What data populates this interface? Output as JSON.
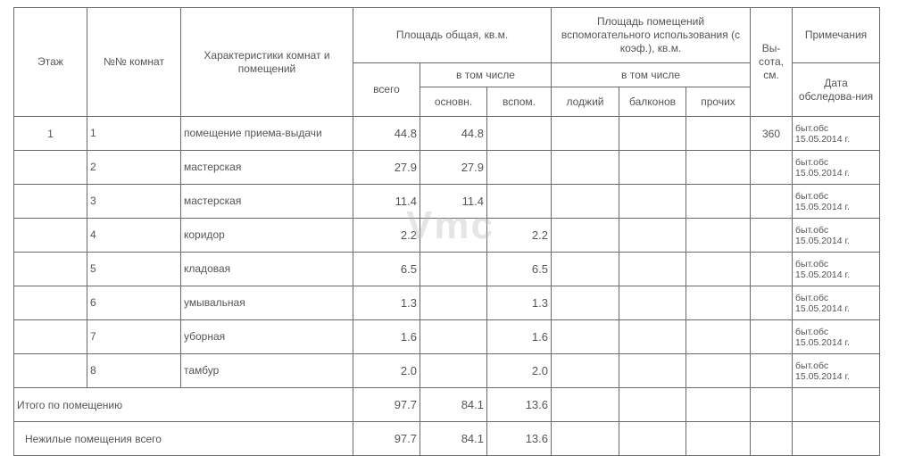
{
  "header": {
    "floor": "Этаж",
    "room_no": "№№ комнат",
    "characteristics": "Характеристики комнат и помещений",
    "total_area": "Площадь общая, кв.м.",
    "incl": "в том числе",
    "total": "всего",
    "main": "основн.",
    "aux": "вспом.",
    "aux_use_area": "Площадь помещений вспомогательного использования (с коэф.), кв.м.",
    "incl2": "в том числе",
    "loggias": "лоджий",
    "balconies": "балконов",
    "other": "прочих",
    "height": "Вы-сота, см.",
    "notes": "Примечания",
    "survey_date": "Дата обследова-ния"
  },
  "rows": [
    {
      "floor": "1",
      "room": "1",
      "name": "помещение приема-выдачи",
      "total": "44.8",
      "main": "44.8",
      "aux": "",
      "height": "360",
      "note": "быт.обс 15.05.2014 г."
    },
    {
      "floor": "",
      "room": "2",
      "name": "мастерская",
      "total": "27.9",
      "main": "27.9",
      "aux": "",
      "height": "",
      "note": "быт.обс 15.05.2014 г."
    },
    {
      "floor": "",
      "room": "3",
      "name": "мастерская",
      "total": "11.4",
      "main": "11.4",
      "aux": "",
      "height": "",
      "note": "быт.обс 15.05.2014 г."
    },
    {
      "floor": "",
      "room": "4",
      "name": "коридор",
      "total": "2.2",
      "main": "",
      "aux": "2.2",
      "height": "",
      "note": "быт.обс 15.05.2014 г."
    },
    {
      "floor": "",
      "room": "5",
      "name": "кладовая",
      "total": "6.5",
      "main": "",
      "aux": "6.5",
      "height": "",
      "note": "быт.обс 15.05.2014 г."
    },
    {
      "floor": "",
      "room": "6",
      "name": "умывальная",
      "total": "1.3",
      "main": "",
      "aux": "1.3",
      "height": "",
      "note": "быт.обс 15.05.2014 г."
    },
    {
      "floor": "",
      "room": "7",
      "name": "уборная",
      "total": "1.6",
      "main": "",
      "aux": "1.6",
      "height": "",
      "note": "быт.обс 15.05.2014 г."
    },
    {
      "floor": "",
      "room": "8",
      "name": "тамбур",
      "total": "2.0",
      "main": "",
      "aux": "2.0",
      "height": "",
      "note": "быт.обс 15.05.2014 г."
    }
  ],
  "totals": [
    {
      "label": "Итого по помещению",
      "total": "97.7",
      "main": "84.1",
      "aux": "13.6"
    },
    {
      "label": "Нежилые помещения всего",
      "total": "97.7",
      "main": "84.1",
      "aux": "13.6"
    }
  ],
  "watermark": "Vmc"
}
